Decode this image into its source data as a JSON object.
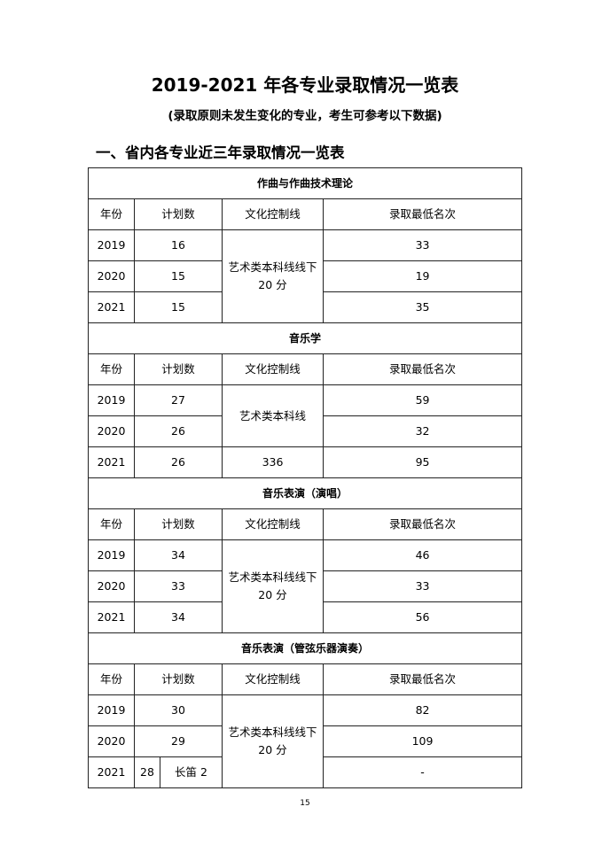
{
  "title": "2019-2021 年各专业录取情况一览表",
  "subtitle": "(录取原则未发生变化的专业，考生可参考以下数据)",
  "heading": "一、省内各专业近三年录取情况一览表",
  "headers": [
    "年份",
    "计划数",
    "文化控制线",
    "录取最低名次"
  ],
  "sections": [
    {
      "title": "作曲与作曲技术理论",
      "rows": [
        {
          "year": "2019",
          "plan": "16",
          "rank": "33"
        },
        {
          "year": "2020",
          "plan": "15",
          "rank": "19"
        },
        {
          "year": "2021",
          "plan": "15",
          "rank": "35"
        }
      ],
      "culture": [
        {
          "text": "艺术类本科线线下\n20 分",
          "span": 3
        }
      ]
    },
    {
      "title": "音乐学",
      "rows": [
        {
          "year": "2019",
          "plan": "27",
          "rank": "59"
        },
        {
          "year": "2020",
          "plan": "26",
          "rank": "32"
        },
        {
          "year": "2021",
          "plan": "26",
          "rank": "95"
        }
      ],
      "culture": [
        {
          "text": "艺术类本科线",
          "span": 2
        },
        {
          "text": "336",
          "span": 1
        }
      ]
    },
    {
      "title": "音乐表演（演唱）",
      "rows": [
        {
          "year": "2019",
          "plan": "34",
          "rank": "46"
        },
        {
          "year": "2020",
          "plan": "33",
          "rank": "33"
        },
        {
          "year": "2021",
          "plan": "34",
          "rank": "56"
        }
      ],
      "culture": [
        {
          "text": "艺术类本科线线下\n20 分",
          "span": 3
        }
      ]
    },
    {
      "title": "音乐表演（管弦乐器演奏）",
      "rows": [
        {
          "year": "2019",
          "plan": "30",
          "rank": "82"
        },
        {
          "year": "2020",
          "plan": "29",
          "rank": "109"
        },
        {
          "year": "2021",
          "plan": "28",
          "plan_note": "长笛 2",
          "rank": "-"
        }
      ],
      "culture": [
        {
          "text": "艺术类本科线线下\n20 分",
          "span": 3
        }
      ]
    }
  ],
  "page_number": "15"
}
